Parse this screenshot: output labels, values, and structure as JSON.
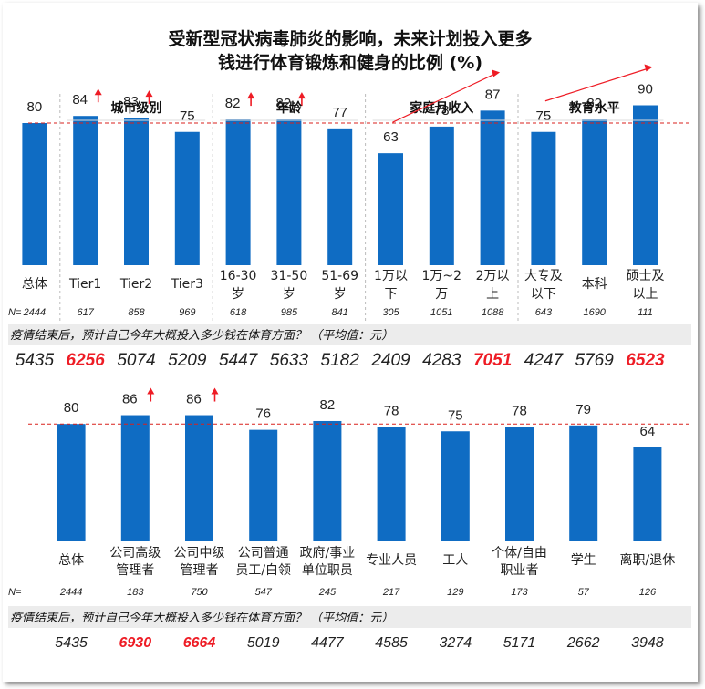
{
  "title_lines": [
    "受新型冠状病毒肺炎的影响，未来计划投入更多",
    "钱进行体育锻炼和健身的比例 (%)"
  ],
  "colors": {
    "bar": "#0f6cc3",
    "highlight": "#ee1c25",
    "arrow": "#ee1c25",
    "reference_line": "#d9201c",
    "question_band": "#ececec"
  },
  "n_prefix": "N=",
  "question": "疫情结束后，预计自己今年大概投入多少钱在体育方面？ （平均值：元）",
  "chart_data": [
    {
      "type": "bar",
      "reference_value": 80,
      "groups": [
        {
          "label": "",
          "categories": [
            0
          ]
        },
        {
          "label": "城市级别",
          "categories": [
            1,
            2,
            3
          ]
        },
        {
          "label": "年龄",
          "categories": [
            4,
            5,
            6
          ]
        },
        {
          "label": "家庭月收入",
          "categories": [
            7,
            8,
            9
          ],
          "trend_arrow": true
        },
        {
          "label": "教育水平",
          "categories": [
            10,
            11,
            12
          ],
          "trend_arrow": true
        }
      ],
      "categories": [
        [
          "总体"
        ],
        [
          "Tier1"
        ],
        [
          "Tier2"
        ],
        [
          "Tier3"
        ],
        [
          "16-30",
          "岁"
        ],
        [
          "31-50",
          "岁"
        ],
        [
          "51-69",
          "岁"
        ],
        [
          "1万以",
          "下"
        ],
        [
          "1万~2",
          "万"
        ],
        [
          "2万以",
          "上"
        ],
        [
          "大专及",
          "以下"
        ],
        [
          "本科"
        ],
        [
          "硕士及",
          "以上"
        ]
      ],
      "values": [
        80,
        84,
        83,
        75,
        82,
        82,
        77,
        63,
        78,
        87,
        75,
        82,
        90
      ],
      "up_arrows": [
        1,
        2,
        4,
        5
      ],
      "n": [
        "2444",
        "617",
        "858",
        "969",
        "618",
        "985",
        "841",
        "305",
        "1051",
        "1088",
        "643",
        "1690",
        "111"
      ],
      "avg_spend": [
        "5435",
        "6256",
        "5074",
        "5209",
        "5447",
        "5633",
        "5182",
        "2409",
        "4283",
        "7051",
        "4247",
        "5769",
        "6523"
      ],
      "avg_spend_highlight": [
        1,
        9,
        12
      ]
    },
    {
      "type": "bar",
      "reference_value": 80,
      "categories": [
        [
          "总体"
        ],
        [
          "公司高级",
          "管理者"
        ],
        [
          "公司中级",
          "管理者"
        ],
        [
          "公司普通",
          "员工/白领"
        ],
        [
          "政府/事业",
          "单位职员"
        ],
        [
          "专业人员"
        ],
        [
          "工人"
        ],
        [
          "个体/自由",
          "职业者"
        ],
        [
          "学生"
        ],
        [
          "离职/退休"
        ]
      ],
      "values": [
        80,
        86,
        86,
        76,
        82,
        78,
        75,
        78,
        79,
        64
      ],
      "up_arrows": [
        1,
        2
      ],
      "n": [
        "2444",
        "183",
        "750",
        "547",
        "245",
        "217",
        "129",
        "173",
        "57",
        "126"
      ],
      "avg_spend": [
        "5435",
        "6930",
        "6664",
        "5019",
        "4477",
        "4585",
        "3274",
        "5171",
        "2662",
        "3948"
      ],
      "avg_spend_highlight": [
        1,
        2
      ]
    }
  ]
}
